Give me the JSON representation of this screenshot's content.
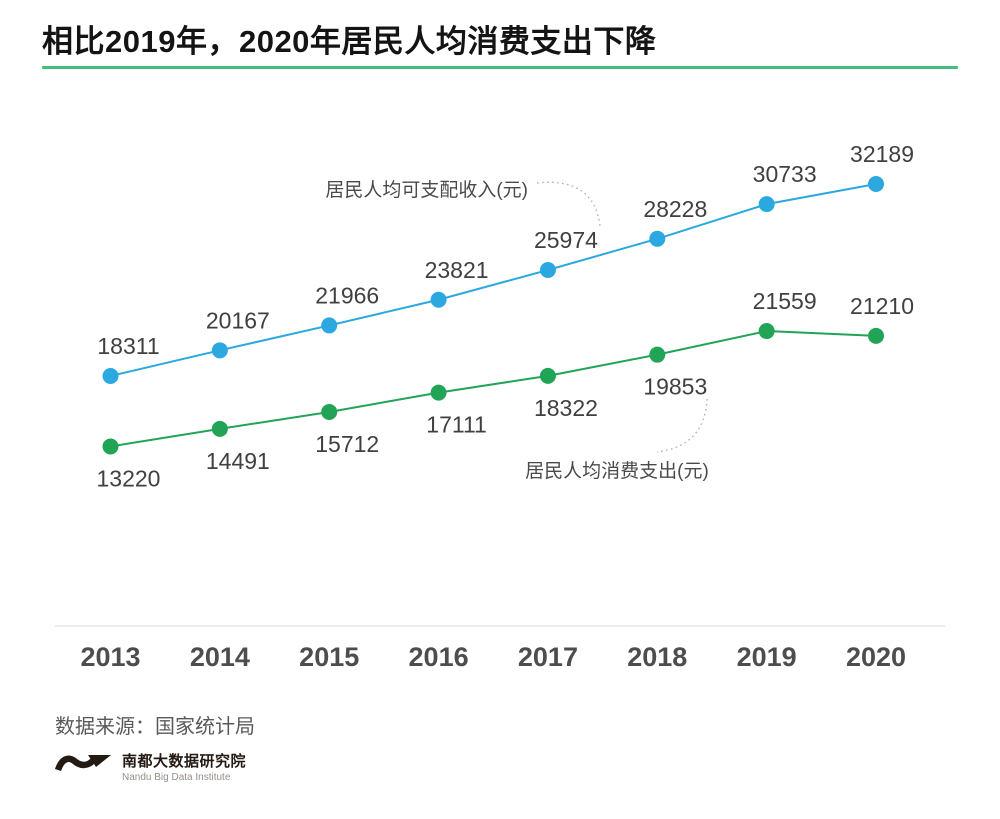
{
  "page": {
    "title": "相比2019年，2020年居民人均消费支出下降",
    "source": "数据来源：国家统计局",
    "logo_cn": "南都大数据研究院",
    "logo_en": "Nandu Big Data Institute",
    "accent_green": "#43bd7f",
    "axis_color": "#ececec"
  },
  "chart_data": {
    "type": "line",
    "title": "相比2019年，2020年居民人均消费支出下降",
    "x": [
      "2013",
      "2014",
      "2015",
      "2016",
      "2017",
      "2018",
      "2019",
      "2020"
    ],
    "series": [
      {
        "name": "居民人均可支配收入(元)",
        "color": "#2CA8E0",
        "values": [
          18311,
          20167,
          21966,
          23821,
          25974,
          28228,
          30733,
          32189
        ],
        "label_positions": [
          "above",
          "above",
          "above",
          "above",
          "above",
          "above",
          "above",
          "above"
        ]
      },
      {
        "name": "居民人均消费支出(元)",
        "color": "#22A456",
        "values": [
          13220,
          14491,
          15712,
          17111,
          18322,
          19853,
          21559,
          21210
        ],
        "label_positions": [
          "below",
          "below",
          "below",
          "below",
          "below",
          "below",
          "above",
          "above"
        ]
      }
    ],
    "xlabel": "",
    "ylabel": "",
    "ylim": [
      12500,
      33500
    ],
    "grid": false,
    "legend_position": "inline-annotations",
    "source": "国家统计局"
  }
}
